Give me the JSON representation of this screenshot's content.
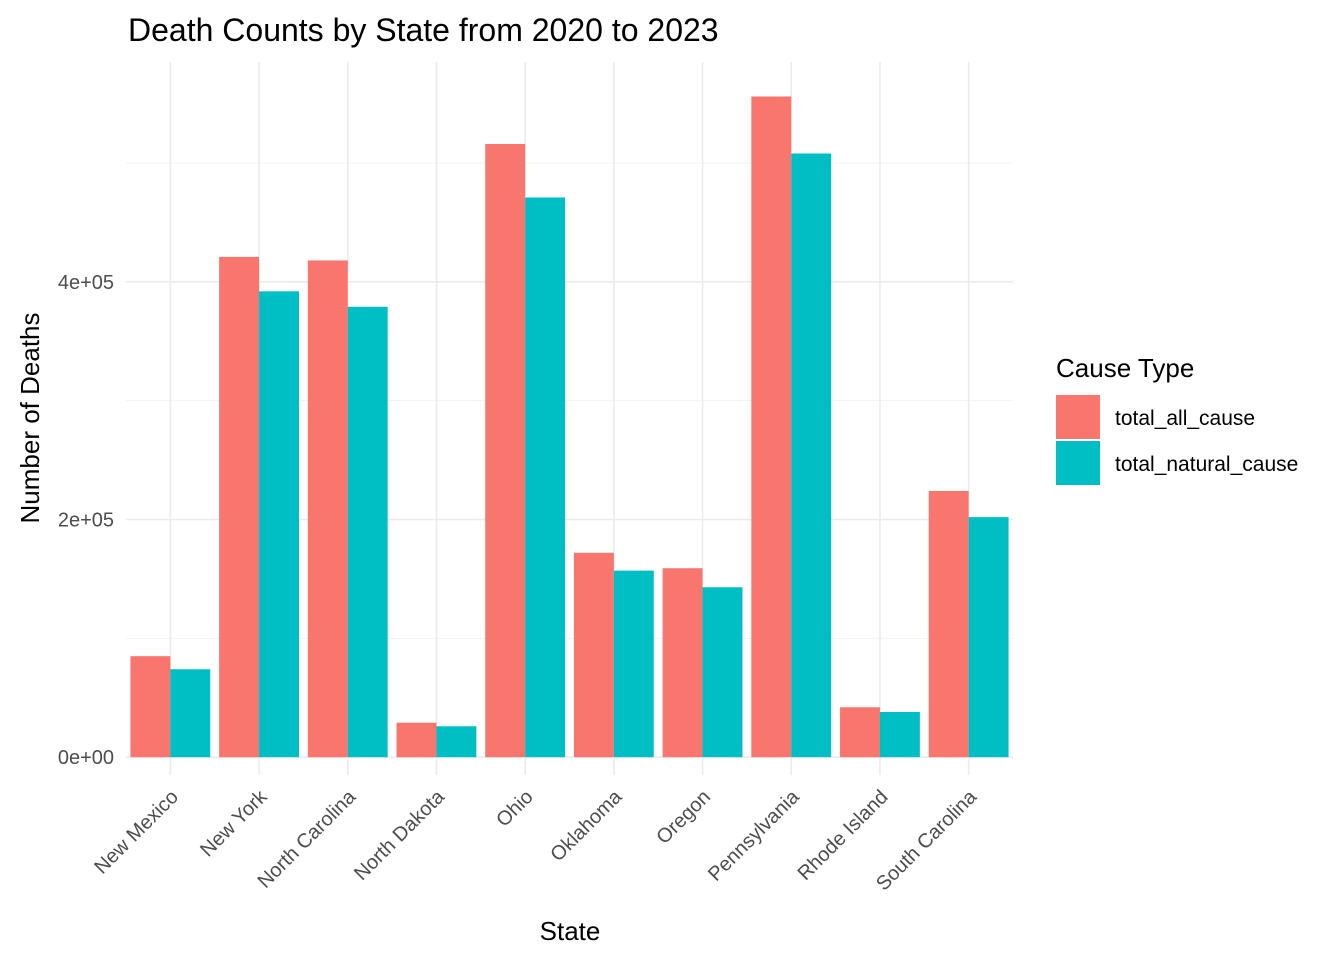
{
  "chart_data": {
    "type": "bar",
    "title": "Death Counts by State from 2020 to 2023",
    "xlabel": "State",
    "ylabel": "Number of Deaths",
    "categories": [
      "New Mexico",
      "New York",
      "North Carolina",
      "North Dakota",
      "Ohio",
      "Oklahoma",
      "Oregon",
      "Pennsylvania",
      "Rhode Island",
      "South Carolina"
    ],
    "series": [
      {
        "name": "total_all_cause",
        "color": "#F8766D",
        "values": [
          85000,
          421000,
          418000,
          29000,
          516000,
          172000,
          159000,
          556000,
          42000,
          224000
        ]
      },
      {
        "name": "total_natural_cause",
        "color": "#00BFC4",
        "values": [
          74000,
          392000,
          379000,
          26000,
          471000,
          157000,
          143000,
          508000,
          38000,
          202000
        ]
      }
    ],
    "ylim": [
      -15000,
      585000
    ],
    "yticks": [
      0,
      200000,
      400000
    ],
    "ytick_labels": [
      "0e+00",
      "2e+05",
      "4e+05"
    ],
    "y_minor_ticks": [
      100000,
      300000,
      500000
    ],
    "grid": true,
    "legend": {
      "title": "Cause Type",
      "position": "right"
    }
  }
}
